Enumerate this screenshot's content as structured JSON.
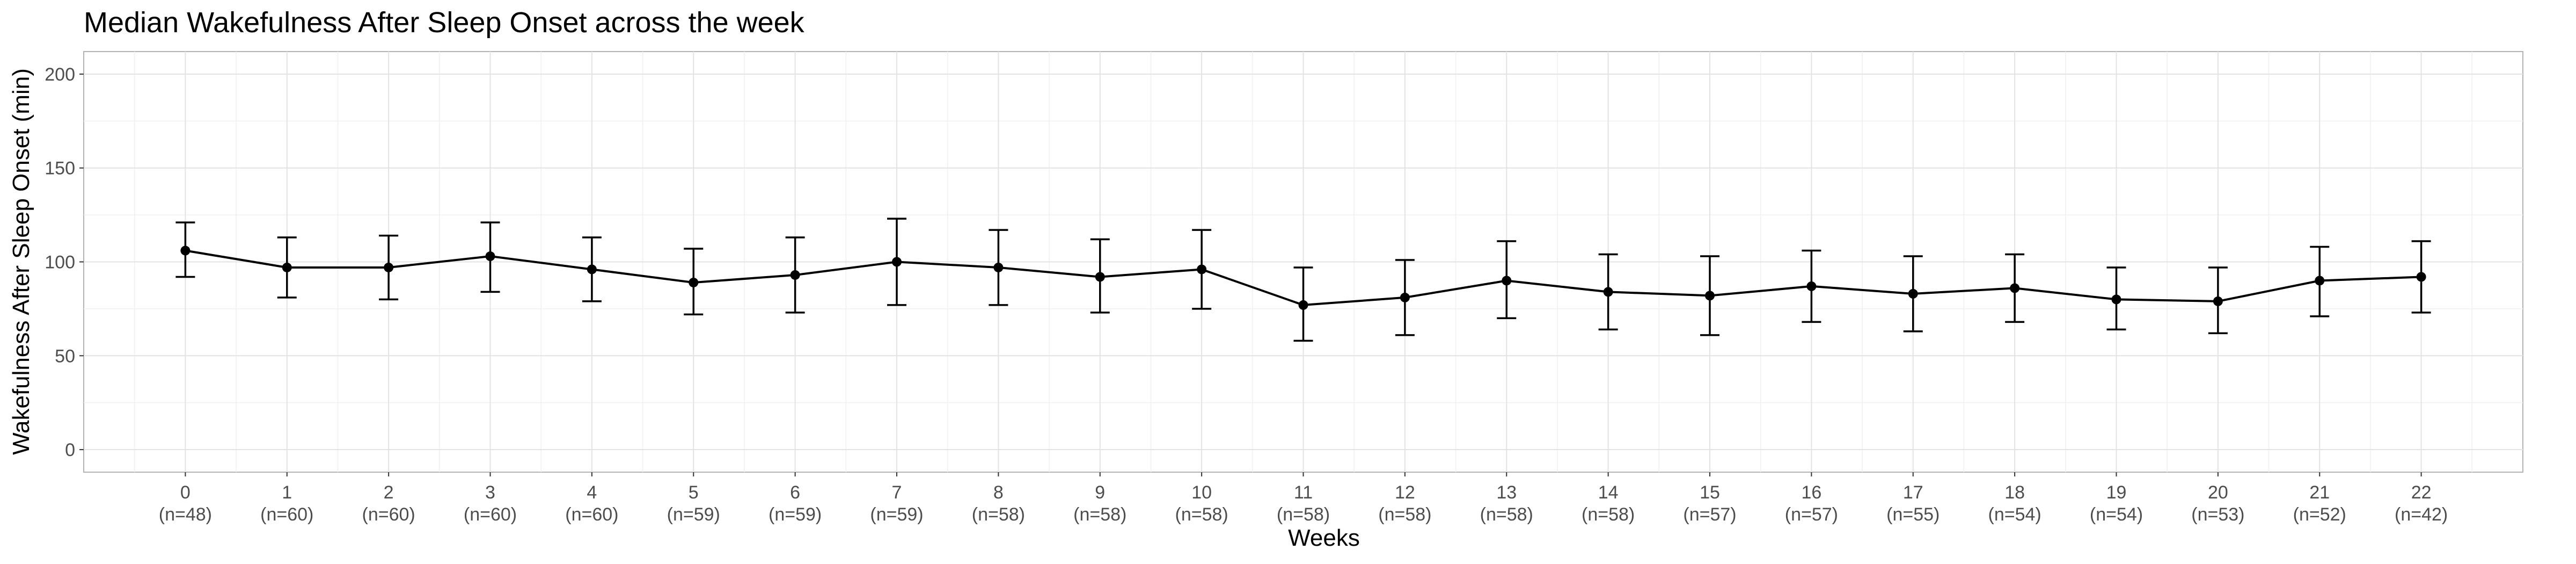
{
  "chart_data": {
    "type": "line",
    "title": "Median Wakefulness After Sleep Onset across the week",
    "xlabel": "Weeks",
    "ylabel": "Wakefulness After Sleep Onset (min)",
    "ylim": [
      0,
      200
    ],
    "y_ticks": [
      0,
      50,
      100,
      150,
      200
    ],
    "grid": true,
    "error_bars": true,
    "x": [
      0,
      1,
      2,
      3,
      4,
      5,
      6,
      7,
      8,
      9,
      10,
      11,
      12,
      13,
      14,
      15,
      16,
      17,
      18,
      19,
      20,
      21,
      22
    ],
    "tick_labels": [
      "0",
      "1",
      "2",
      "3",
      "4",
      "5",
      "6",
      "7",
      "8",
      "9",
      "10",
      "11",
      "12",
      "13",
      "14",
      "15",
      "16",
      "17",
      "18",
      "19",
      "20",
      "21",
      "22"
    ],
    "n_labels": [
      "(n=48)",
      "(n=60)",
      "(n=60)",
      "(n=60)",
      "(n=60)",
      "(n=59)",
      "(n=59)",
      "(n=59)",
      "(n=58)",
      "(n=58)",
      "(n=58)",
      "(n=58)",
      "(n=58)",
      "(n=58)",
      "(n=58)",
      "(n=57)",
      "(n=57)",
      "(n=55)",
      "(n=54)",
      "(n=54)",
      "(n=53)",
      "(n=52)",
      "(n=42)"
    ],
    "series": [
      {
        "values": [
          106,
          97,
          97,
          103,
          96,
          89,
          93,
          100,
          97,
          92,
          96,
          77,
          81,
          90,
          84,
          82,
          87,
          83,
          86,
          80,
          79,
          90,
          92
        ],
        "lower": [
          92,
          81,
          80,
          84,
          79,
          72,
          73,
          77,
          77,
          73,
          75,
          58,
          61,
          70,
          64,
          61,
          68,
          63,
          68,
          64,
          62,
          71,
          73
        ],
        "upper": [
          121,
          113,
          114,
          121,
          113,
          107,
          113,
          123,
          117,
          112,
          117,
          97,
          101,
          111,
          104,
          103,
          106,
          103,
          104,
          97,
          97,
          108,
          111
        ]
      }
    ]
  }
}
